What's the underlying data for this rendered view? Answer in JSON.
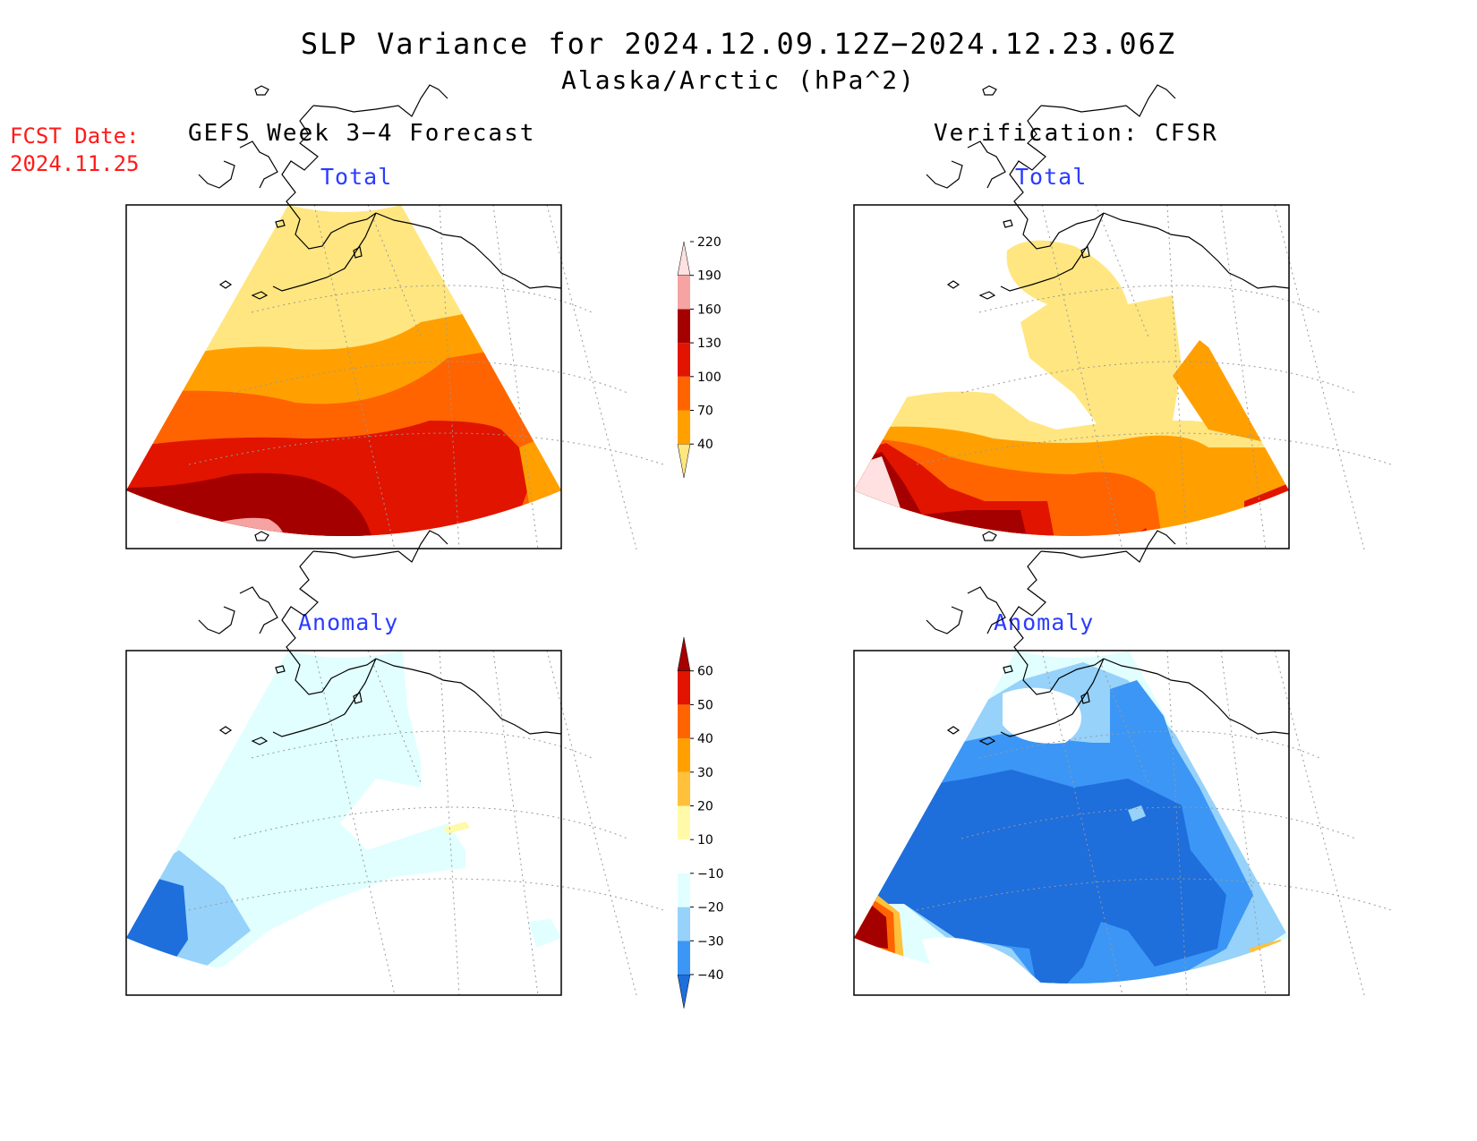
{
  "title": "SLP Variance for 2024.12.09.12Z−2024.12.23.06Z",
  "subtitle": "Alaska/Arctic (hPa^2)",
  "forecast_date": {
    "label": "FCST Date:",
    "value": "2024.11.25"
  },
  "columns": [
    {
      "heading": "GEFS Week 3−4 Forecast"
    },
    {
      "heading": "Verification: CFSR"
    }
  ],
  "panels": {
    "forecast_total": {
      "title": "Total"
    },
    "verification_total": {
      "title": "Total"
    },
    "forecast_anomaly": {
      "title": "Anomaly"
    },
    "verification_anomaly": {
      "title": "Anomaly"
    }
  },
  "total_colorbar": {
    "levels": [
      "40",
      "70",
      "100",
      "130",
      "160",
      "190",
      "220"
    ],
    "colors": [
      "#ffe680",
      "#ffa000",
      "#ff6400",
      "#e11400",
      "#a50000",
      "#f5a3a3",
      "#ffe1e1"
    ]
  },
  "anomaly_colorbar": {
    "levels": [
      "−40",
      "−30",
      "−20",
      "−10",
      "10",
      "20",
      "30",
      "40",
      "50",
      "60"
    ],
    "colors": [
      "#1e6edc",
      "#3c96f5",
      "#96d2fa",
      "#e1ffff",
      "#ffffff",
      "#fffaaa",
      "#ffc03c",
      "#ffa000",
      "#ff6400",
      "#e11400",
      "#a50000"
    ]
  },
  "colors": {
    "title_red": "#ff1a1a",
    "panel_title_blue": "#2b3cff"
  }
}
